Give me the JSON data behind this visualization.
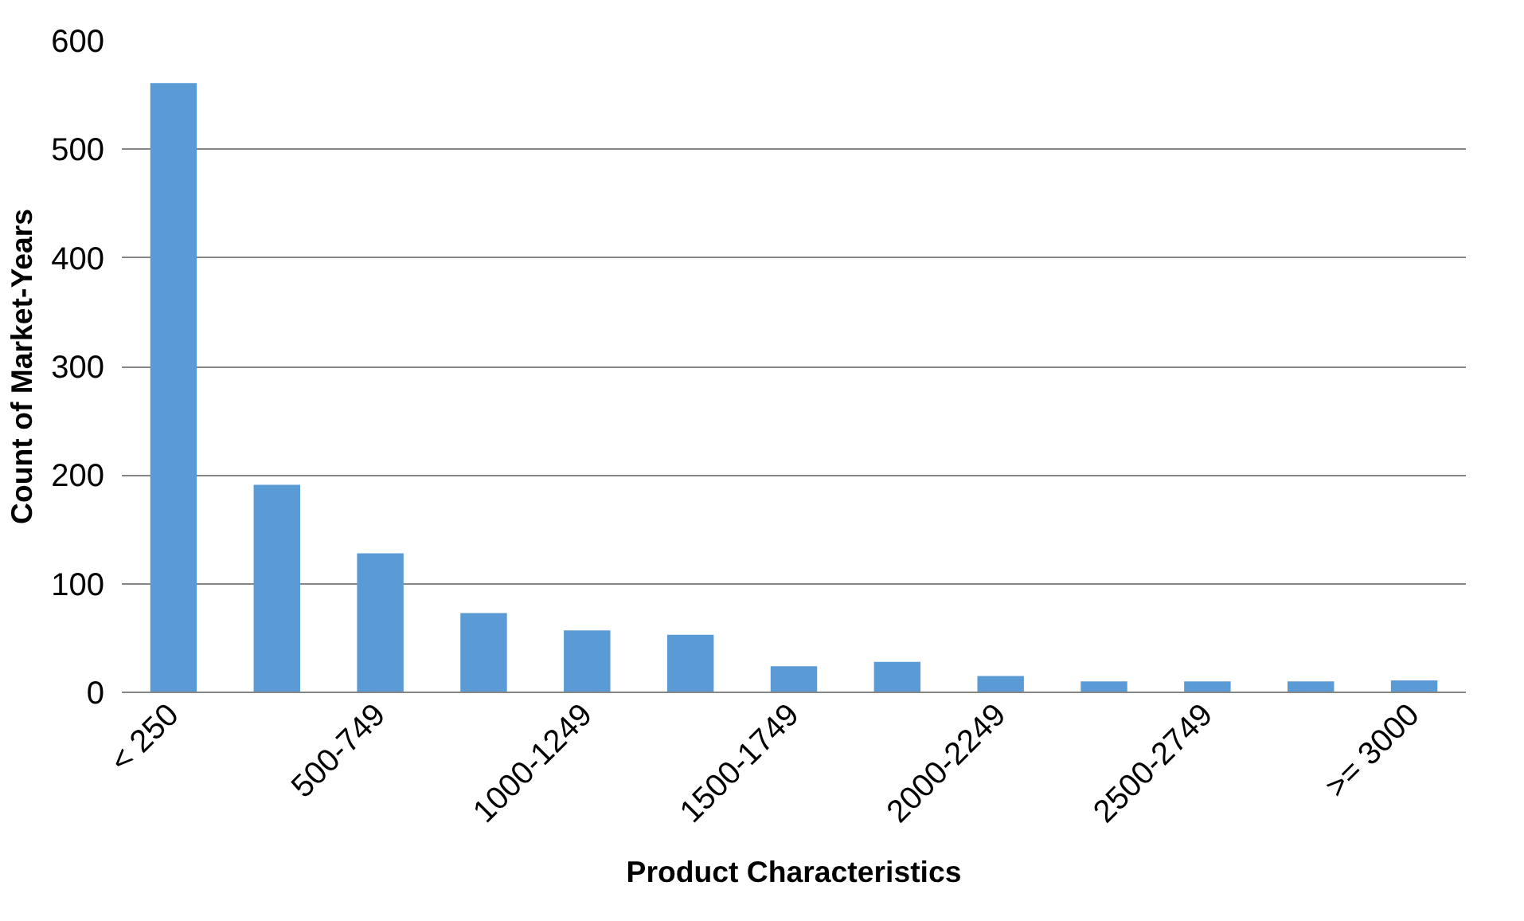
{
  "chart_data": {
    "type": "bar",
    "xlabel": "Product Characteristics",
    "ylabel": "Count of Market-Years",
    "categories": [
      "< 250",
      null,
      "500-749",
      null,
      "1000-1249",
      null,
      "1500-1749",
      null,
      "2000-2249",
      null,
      "2500-2749",
      null,
      ">= 3000"
    ],
    "values": [
      561,
      191,
      128,
      73,
      57,
      53,
      24,
      28,
      15,
      10,
      10,
      10,
      11
    ],
    "color": "#5b9bd5",
    "ylim": [
      0,
      600
    ],
    "yticks": [
      0,
      100,
      200,
      300,
      400,
      500,
      600
    ],
    "grid": "y"
  }
}
